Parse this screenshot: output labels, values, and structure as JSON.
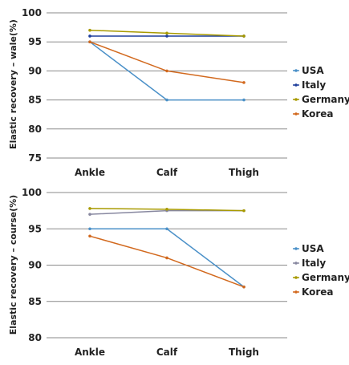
{
  "chart_data": [
    {
      "type": "line",
      "title": "",
      "xlabel": "",
      "ylabel": "Elastic recovery – wale(%)",
      "categories": [
        "Ankle",
        "Calf",
        "Thigh"
      ],
      "ylim": [
        75,
        100
      ],
      "yticks": [
        75,
        80,
        85,
        90,
        95,
        100
      ],
      "grid": true,
      "legend": "right",
      "series": [
        {
          "name": "USA",
          "values": [
            95,
            85,
            85
          ],
          "color": "#4a90c8"
        },
        {
          "name": "Italy",
          "values": [
            96,
            96,
            96
          ],
          "color": "#1f3f9c"
        },
        {
          "name": "Germany",
          "values": [
            97,
            96.5,
            96
          ],
          "color": "#a89a00"
        },
        {
          "name": "Korea",
          "values": [
            95,
            90,
            88
          ],
          "color": "#d2691e"
        }
      ]
    },
    {
      "type": "line",
      "title": "",
      "xlabel": "",
      "ylabel": "Elastic recovery – course(%)",
      "categories": [
        "Ankle",
        "Calf",
        "Thigh"
      ],
      "ylim": [
        80,
        100
      ],
      "yticks": [
        80,
        85,
        90,
        95,
        100
      ],
      "grid": true,
      "legend": "right",
      "series": [
        {
          "name": "USA",
          "values": [
            95,
            95,
            87
          ],
          "color": "#4a90c8"
        },
        {
          "name": "Italy",
          "values": [
            97,
            97.5,
            97.5
          ],
          "color": "#8888a0"
        },
        {
          "name": "Germany",
          "values": [
            97.8,
            97.7,
            97.5
          ],
          "color": "#a89a00"
        },
        {
          "name": "Korea",
          "values": [
            94,
            91,
            87
          ],
          "color": "#d2691e"
        }
      ]
    }
  ]
}
